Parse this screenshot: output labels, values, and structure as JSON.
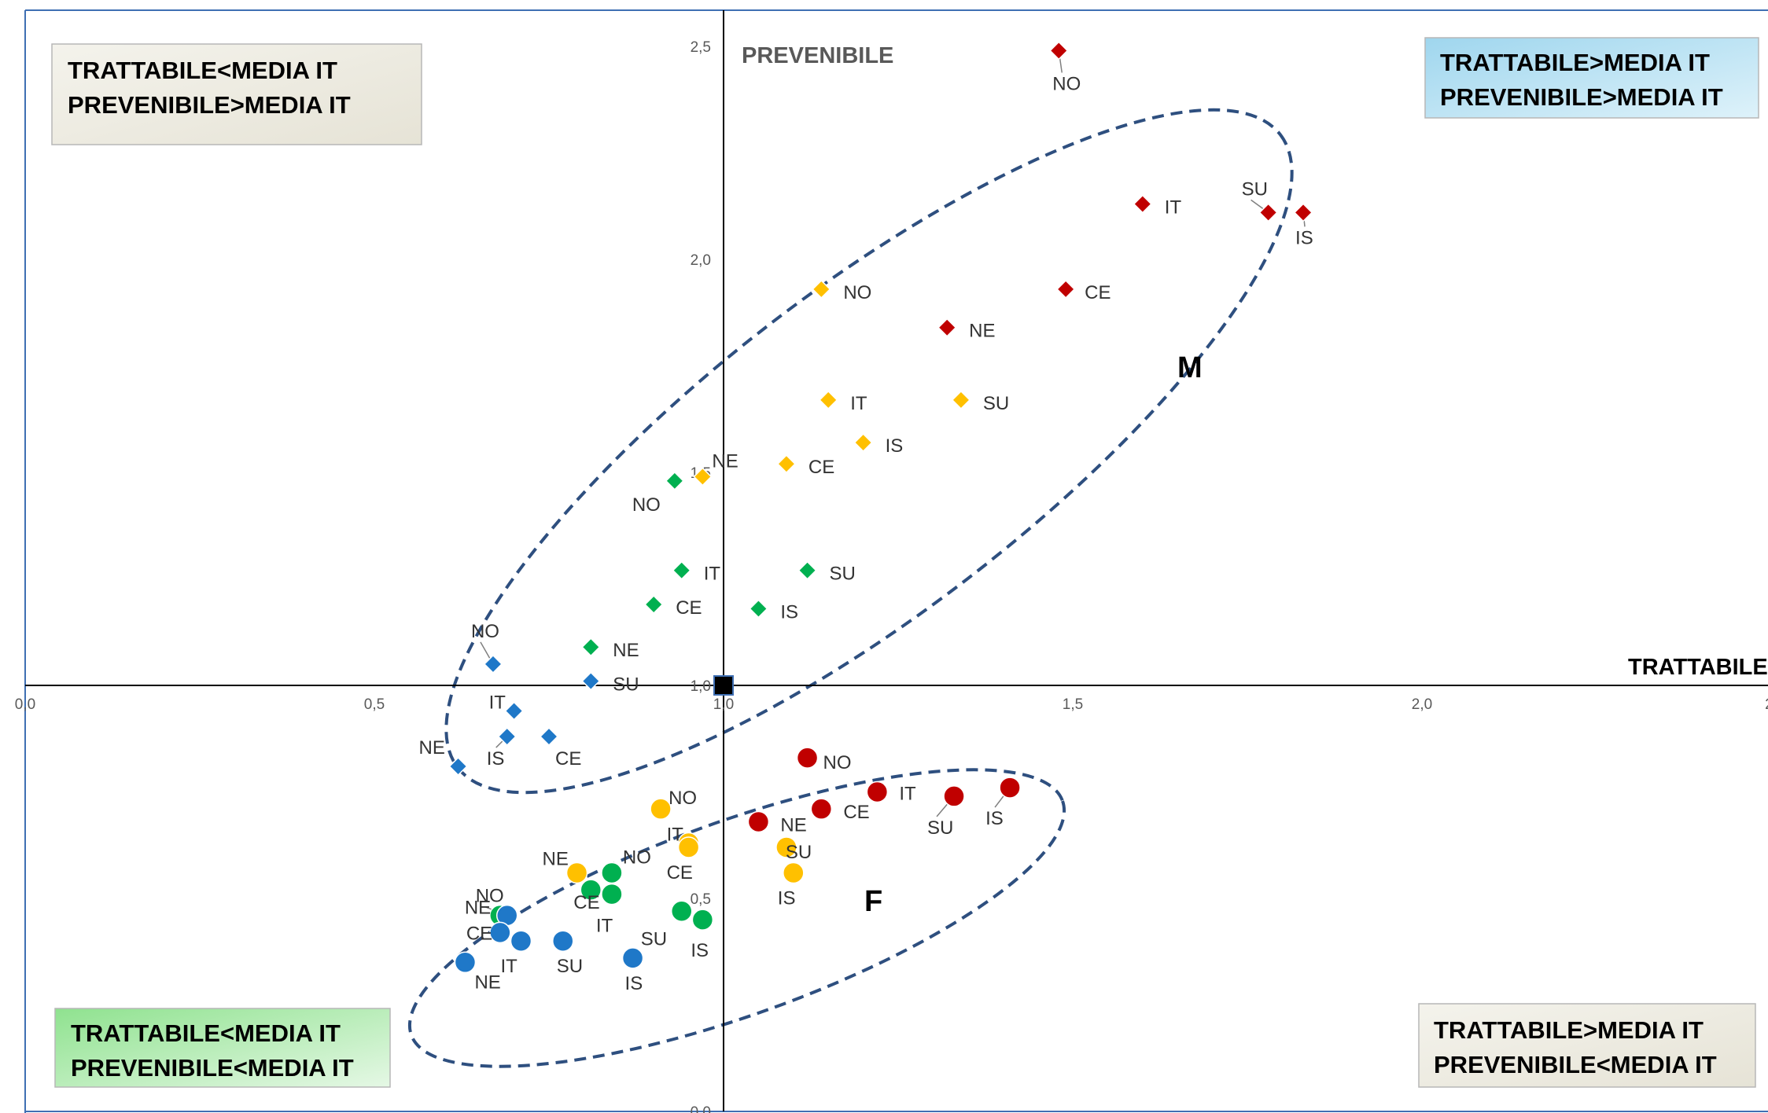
{
  "chart_data": {
    "type": "scatter",
    "xlim": [
      0.0,
      2.5
    ],
    "ylim": [
      0.0,
      2.5
    ],
    "x_ticks": [
      "0,0",
      "0,5",
      "1,0",
      "1,5",
      "2,0",
      "2,"
    ],
    "y_ticks": [
      "2,5",
      "2,0",
      "1,5",
      "1,0",
      "0,5",
      "0,0"
    ],
    "xlabel": "TRATTABILE",
    "ylabel": "PREVENIBILE",
    "reference_point": {
      "x": 1.0,
      "y": 1.0
    },
    "grid": false,
    "series": [
      {
        "marker": "diamond",
        "color": "#c00000",
        "points": [
          {
            "label": "NO",
            "x": 1.48,
            "y": 2.49
          },
          {
            "label": "IT",
            "x": 1.6,
            "y": 2.13
          },
          {
            "label": "SU",
            "x": 1.78,
            "y": 2.11
          },
          {
            "label": "IS",
            "x": 1.83,
            "y": 2.11
          },
          {
            "label": "CE",
            "x": 1.49,
            "y": 1.93
          },
          {
            "label": "NE",
            "x": 1.32,
            "y": 1.84
          }
        ]
      },
      {
        "marker": "diamond",
        "color": "#ffc000",
        "points": [
          {
            "label": "NO",
            "x": 1.14,
            "y": 1.93
          },
          {
            "label": "IT",
            "x": 1.15,
            "y": 1.67
          },
          {
            "label": "SU",
            "x": 1.34,
            "y": 1.67
          },
          {
            "label": "IS",
            "x": 1.2,
            "y": 1.57
          },
          {
            "label": "CE",
            "x": 1.09,
            "y": 1.52
          },
          {
            "label": "NE",
            "x": 0.97,
            "y": 1.49
          }
        ]
      },
      {
        "marker": "diamond",
        "color": "#00b050",
        "points": [
          {
            "label": "NO",
            "x": 0.93,
            "y": 1.48
          },
          {
            "label": "IT",
            "x": 0.94,
            "y": 1.27
          },
          {
            "label": "SU",
            "x": 1.12,
            "y": 1.27
          },
          {
            "label": "CE",
            "x": 0.9,
            "y": 1.19
          },
          {
            "label": "IS",
            "x": 1.05,
            "y": 1.18
          },
          {
            "label": "NE",
            "x": 0.81,
            "y": 1.09
          }
        ]
      },
      {
        "marker": "diamond",
        "color": "#1f78c8",
        "points": [
          {
            "label": "NO",
            "x": 0.67,
            "y": 1.05
          },
          {
            "label": "SU",
            "x": 0.81,
            "y": 1.01
          },
          {
            "label": "IT",
            "x": 0.7,
            "y": 0.94
          },
          {
            "label": "IS",
            "x": 0.69,
            "y": 0.88
          },
          {
            "label": "CE",
            "x": 0.75,
            "y": 0.88
          },
          {
            "label": "NE",
            "x": 0.62,
            "y": 0.81
          }
        ]
      },
      {
        "marker": "circle",
        "color": "#c00000",
        "points": [
          {
            "label": "NO",
            "x": 1.12,
            "y": 0.83
          },
          {
            "label": "IS",
            "x": 1.41,
            "y": 0.76
          },
          {
            "label": "IT",
            "x": 1.22,
            "y": 0.75
          },
          {
            "label": "SU",
            "x": 1.33,
            "y": 0.74
          },
          {
            "label": "CE",
            "x": 1.14,
            "y": 0.71
          },
          {
            "label": "NE",
            "x": 1.05,
            "y": 0.68
          }
        ]
      },
      {
        "marker": "circle",
        "color": "#ffc000",
        "points": [
          {
            "label": "NO",
            "x": 0.91,
            "y": 0.71
          },
          {
            "label": "IT",
            "x": 0.95,
            "y": 0.63
          },
          {
            "label": "CE",
            "x": 0.95,
            "y": 0.62
          },
          {
            "label": "SU",
            "x": 1.09,
            "y": 0.62
          },
          {
            "label": "IS",
            "x": 1.1,
            "y": 0.56
          },
          {
            "label": "NE",
            "x": 0.79,
            "y": 0.56
          }
        ]
      },
      {
        "marker": "circle",
        "color": "#00b050",
        "points": [
          {
            "label": "NO",
            "x": 0.84,
            "y": 0.56
          },
          {
            "label": "CE",
            "x": 0.81,
            "y": 0.52
          },
          {
            "label": "IT",
            "x": 0.84,
            "y": 0.51
          },
          {
            "label": "SU",
            "x": 0.94,
            "y": 0.47
          },
          {
            "label": "IS",
            "x": 0.97,
            "y": 0.45
          },
          {
            "label": "NE",
            "x": 0.68,
            "y": 0.46
          }
        ]
      },
      {
        "marker": "circle",
        "color": "#1f78c8",
        "points": [
          {
            "label": "NO",
            "x": 0.69,
            "y": 0.46
          },
          {
            "label": "CE",
            "x": 0.68,
            "y": 0.42
          },
          {
            "label": "IT",
            "x": 0.71,
            "y": 0.4
          },
          {
            "label": "SU",
            "x": 0.77,
            "y": 0.4
          },
          {
            "label": "IS",
            "x": 0.87,
            "y": 0.36
          },
          {
            "label": "NE",
            "x": 0.63,
            "y": 0.35
          }
        ]
      }
    ],
    "groups": [
      {
        "label": "M",
        "color": "#2e4f7f"
      },
      {
        "label": "F",
        "color": "#2e4f7f"
      }
    ],
    "quadrant_boxes": [
      {
        "position": "top-left",
        "lines": [
          "TRATTABILE<MEDIA IT",
          "PREVENIBILE>MEDIA IT"
        ],
        "fill": "#eeece2"
      },
      {
        "position": "top-right",
        "lines": [
          "TRATTABILE>MEDIA IT",
          "PREVENIBILE>MEDIA IT"
        ],
        "fill": "#bfe3f3"
      },
      {
        "position": "bottom-left",
        "lines": [
          "TRATTABILE<MEDIA IT",
          "PREVENIBILE<MEDIA IT"
        ],
        "fill": "#b8ecb8"
      },
      {
        "position": "bottom-right",
        "lines": [
          "TRATTABILE>MEDIA IT",
          "PREVENIBILE<MEDIA IT"
        ],
        "fill": "#eeece2"
      }
    ]
  }
}
